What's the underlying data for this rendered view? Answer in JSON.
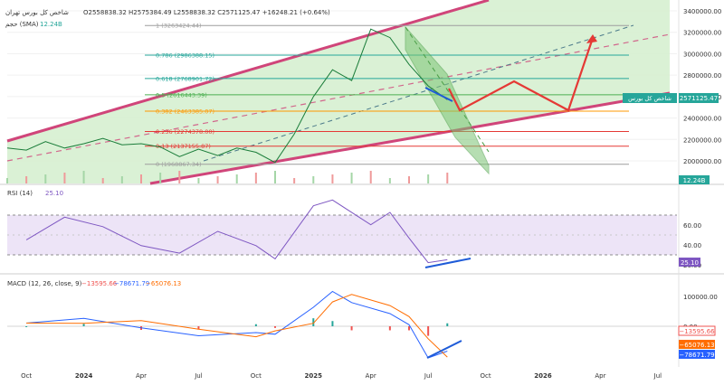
{
  "header": {
    "symbol": "شاخص کل بورس تهران",
    "ohlc": "O2558838.32  H2575384.49  L2558838.32  C2571125.47  +16248.21 (+0.64%)",
    "sma_label": "حجم (SMA)",
    "sma_value": "12.24B"
  },
  "price_axis": {
    "ticks": [
      "3400000.00",
      "3200000.00",
      "3000000.00",
      "2800000.00",
      "2600000.00",
      "2400000.00",
      "2200000.00",
      "2000000.00"
    ],
    "last_label": "شاخص کل بورس",
    "last_value": "2571125.47",
    "volume_badge": "12.24B"
  },
  "fib_levels": [
    {
      "ratio": "1",
      "label": "1 (3263424.44)",
      "color": "#9e9e9e"
    },
    {
      "ratio": "0.786",
      "label": "0.786 (2986388.15)",
      "color": "#26a69a"
    },
    {
      "ratio": "0.618",
      "label": "0.618 (2768901.72)",
      "color": "#26a69a"
    },
    {
      "ratio": "0.5",
      "label": "0.5 (2616443.39)",
      "color": "#4caf50"
    },
    {
      "ratio": "0.382",
      "label": "0.382 (2463385.07)",
      "color": "#ff9800"
    },
    {
      "ratio": "0.236",
      "label": "0.236 (2274378.00)",
      "color": "#e53935"
    },
    {
      "ratio": "0.13",
      "label": "0.13 (2137155.87)",
      "color": "#e53935"
    },
    {
      "ratio": "0",
      "label": "0 (1968867.34)",
      "color": "#9e9e9e"
    }
  ],
  "rsi": {
    "title": "RSI (14)",
    "value": "25.10",
    "ticks": [
      "60.00",
      "40.00",
      "20.00"
    ],
    "badge": "25.10"
  },
  "macd": {
    "title": "MACD (12, 26, close, 9)",
    "hist_value": "−13595.66",
    "macd_value": "−78671.79",
    "signal_value": "−65076.13",
    "ticks": [
      "100000.00",
      "0.00"
    ],
    "badges": [
      "−13595.66",
      "−65076.13",
      "−78671.79"
    ]
  },
  "time_axis": [
    "Oct",
    "2024",
    "Apr",
    "Jul",
    "Oct",
    "2025",
    "Apr",
    "Jul",
    "Oct",
    "2026",
    "Apr",
    "Jul"
  ],
  "colors": {
    "channel_fill": "#d6efd0",
    "channel_line": "#d0457a",
    "projection": "#e53935",
    "divergence": "#1e5bd8",
    "rsi_line": "#7e57c2",
    "macd_line": "#2962ff",
    "signal_line": "#ff6d00",
    "last_badge": "#26a69a",
    "hist_up": "#26a69a",
    "hist_down": "#ef5350"
  },
  "chart_data": {
    "type": "line",
    "title": "شاخص کل بورس تهران",
    "x_range": [
      "2023-09",
      "2026-08"
    ],
    "y_range": [
      1800000,
      3420000
    ],
    "last_close": 2571125.47,
    "ohlc": {
      "open": 2558838.32,
      "high": 2575384.49,
      "low": 2558838.32,
      "close": 2571125.47,
      "change": 16248.21,
      "change_pct": 0.64
    },
    "fibonacci": [
      {
        "ratio": 1,
        "value": 3263424.44
      },
      {
        "ratio": 0.786,
        "value": 2986388.15
      },
      {
        "ratio": 0.618,
        "value": 2768901.72
      },
      {
        "ratio": 0.5,
        "value": 2616443.39
      },
      {
        "ratio": 0.382,
        "value": 2463385.07
      },
      {
        "ratio": 0.236,
        "value": 2274378.0
      },
      {
        "ratio": 0.13,
        "value": 2137155.87
      },
      {
        "ratio": 0,
        "value": 1968867.34
      }
    ],
    "series": [
      {
        "name": "شاخص کل بورس",
        "points": [
          [
            "2023-09",
            2120000
          ],
          [
            "2023-10",
            2100000
          ],
          [
            "2023-11",
            2180000
          ],
          [
            "2023-12",
            2120000
          ],
          [
            "2024-01",
            2160000
          ],
          [
            "2024-02",
            2210000
          ],
          [
            "2024-03",
            2150000
          ],
          [
            "2024-04",
            2160000
          ],
          [
            "2024-05",
            2130000
          ],
          [
            "2024-06",
            2040000
          ],
          [
            "2024-07",
            2110000
          ],
          [
            "2024-08",
            2050000
          ],
          [
            "2024-09",
            2120000
          ],
          [
            "2024-10",
            2080000
          ],
          [
            "2024-11",
            1985000
          ],
          [
            "2024-12",
            2250000
          ],
          [
            "2025-01",
            2600000
          ],
          [
            "2025-02",
            2850000
          ],
          [
            "2025-03",
            2750000
          ],
          [
            "2025-04",
            3230000
          ],
          [
            "2025-05",
            3150000
          ],
          [
            "2025-06",
            2900000
          ],
          [
            "2025-07",
            2700000
          ],
          [
            "2025-08",
            2571125
          ]
        ]
      }
    ],
    "rsi": {
      "period": 14,
      "last": 25.1,
      "levels": [
        70,
        30
      ],
      "ylim": [
        15,
        95
      ],
      "values": [
        [
          "2023-10",
          46
        ],
        [
          "2023-12",
          70
        ],
        [
          "2024-02",
          60
        ],
        [
          "2024-04",
          40
        ],
        [
          "2024-06",
          32
        ],
        [
          "2024-08",
          55
        ],
        [
          "2024-10",
          40
        ],
        [
          "2024-11",
          26
        ],
        [
          "2025-01",
          82
        ],
        [
          "2025-02",
          88
        ],
        [
          "2025-04",
          62
        ],
        [
          "2025-05",
          75
        ],
        [
          "2025-06",
          48
        ],
        [
          "2025-07",
          22
        ],
        [
          "2025-08",
          25.1
        ]
      ]
    },
    "macd": {
      "fast": 12,
      "slow": 26,
      "signal": 9,
      "hist": -13595.66,
      "macd": -78671.79,
      "signal_value": -65076.13,
      "values": [
        [
          "2023-10",
          10000
        ],
        [
          "2024-01",
          25000
        ],
        [
          "2024-04",
          -5000
        ],
        [
          "2024-07",
          -30000
        ],
        [
          "2024-10",
          -20000
        ],
        [
          "2024-11",
          -25000
        ],
        [
          "2025-01",
          60000
        ],
        [
          "2025-02",
          110000
        ],
        [
          "2025-03",
          75000
        ],
        [
          "2025-05",
          40000
        ],
        [
          "2025-06",
          5000
        ],
        [
          "2025-07",
          -100000
        ],
        [
          "2025-08",
          -78671.79
        ]
      ]
    }
  }
}
